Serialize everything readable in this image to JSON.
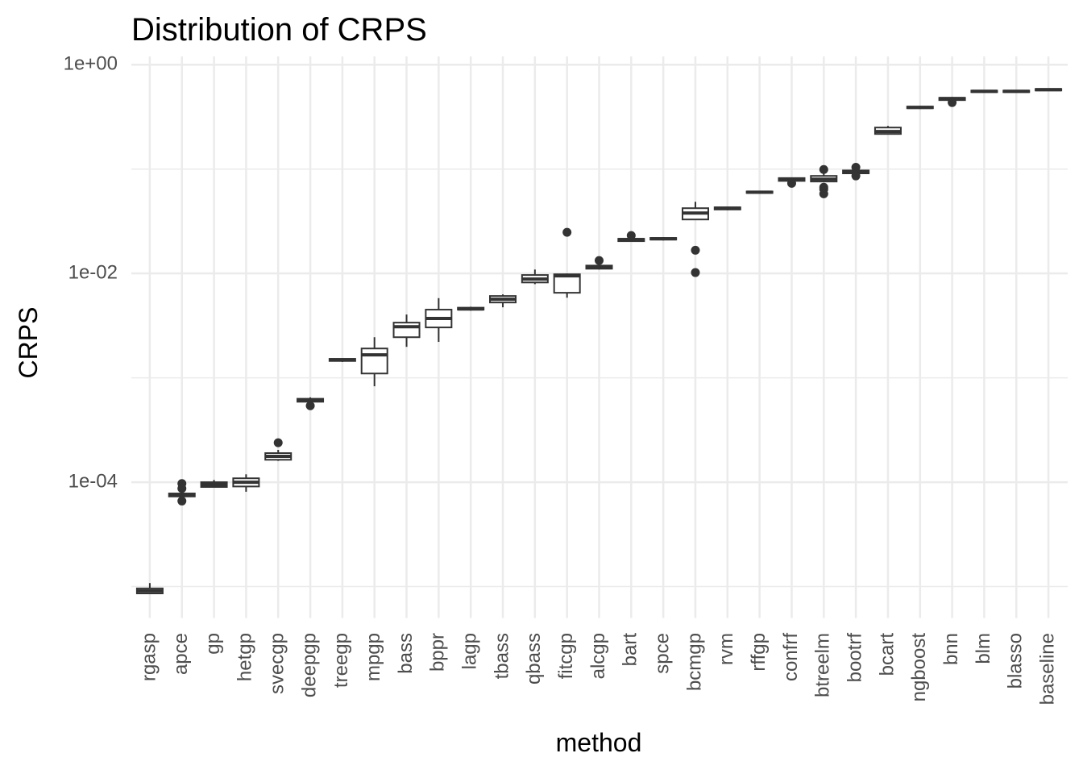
{
  "chart_data": {
    "type": "boxplot",
    "title": "Distribution of CRPS",
    "x_label": "method",
    "y_label": "CRPS",
    "log_scale": true,
    "grid": true,
    "color": "#333333",
    "fill": "#ffffff",
    "ylim": [
      5e-06,
      1.2
    ],
    "yticks": [
      {
        "value": 1,
        "label": "1e+00"
      },
      {
        "value": 0.01,
        "label": "1e-02"
      },
      {
        "value": 0.0001,
        "label": "1e-04"
      }
    ],
    "minor_yticks": [
      0.1,
      0.001,
      1e-05
    ],
    "categories": [
      "rgasp",
      "apce",
      "gp",
      "hetgp",
      "svecgp",
      "deepgp",
      "treegp",
      "mpgp",
      "bass",
      "bppr",
      "lagp",
      "tbass",
      "qbass",
      "fitcgp",
      "alcgp",
      "bart",
      "spce",
      "bcmgp",
      "rvm",
      "rffgp",
      "confrf",
      "btreelm",
      "bootrf",
      "bcart",
      "ngboost",
      "bnn",
      "blm",
      "blasso",
      "baseline"
    ],
    "boxes": [
      {
        "whisker_low": 8.6e-06,
        "q1": 8.6e-06,
        "median": 9.1e-06,
        "q3": 9.6e-06,
        "whisker_high": 1.08e-05,
        "outliers": []
      },
      {
        "whisker_low": 7.2e-05,
        "q1": 7.3e-05,
        "median": 7.5e-05,
        "q3": 7.8e-05,
        "whisker_high": 7.9e-05,
        "outliers": [
          9.7e-05,
          8.7e-05,
          6.6e-05
        ]
      },
      {
        "whisker_low": 8.9e-05,
        "q1": 9e-05,
        "median": 9.5e-05,
        "q3": 0.0001,
        "whisker_high": 0.000105,
        "outliers": []
      },
      {
        "whisker_low": 8.1e-05,
        "q1": 9.1e-05,
        "median": 0.0001,
        "q3": 0.000109,
        "whisker_high": 0.000119,
        "outliers": []
      },
      {
        "whisker_low": 0.00016,
        "q1": 0.000164,
        "median": 0.000177,
        "q3": 0.00019,
        "whisker_high": 0.000204,
        "outliers": [
          0.000239
        ]
      },
      {
        "whisker_low": 0.00057,
        "q1": 0.00059,
        "median": 0.00061,
        "q3": 0.00063,
        "whisker_high": 0.00065,
        "outliers": [
          0.00054
        ]
      },
      {
        "whisker_low": 0.00142,
        "q1": 0.00145,
        "median": 0.00149,
        "q3": 0.00152,
        "whisker_high": 0.00154,
        "outliers": []
      },
      {
        "whisker_low": 0.00083,
        "q1": 0.0011,
        "median": 0.00166,
        "q3": 0.00191,
        "whisker_high": 0.00245,
        "outliers": []
      },
      {
        "whisker_low": 0.00198,
        "q1": 0.00245,
        "median": 0.00309,
        "q3": 0.00338,
        "whisker_high": 0.00404,
        "outliers": []
      },
      {
        "whisker_low": 0.00221,
        "q1": 0.00304,
        "median": 0.0037,
        "q3": 0.0045,
        "whisker_high": 0.0058,
        "outliers": []
      },
      {
        "whisker_low": 0.0044,
        "q1": 0.0045,
        "median": 0.00457,
        "q3": 0.0047,
        "whisker_high": 0.0048,
        "outliers": []
      },
      {
        "whisker_low": 0.00474,
        "q1": 0.00527,
        "median": 0.00566,
        "q3": 0.00608,
        "whisker_high": 0.0063,
        "outliers": []
      },
      {
        "whisker_low": 0.0079,
        "q1": 0.0082,
        "median": 0.00883,
        "q3": 0.00966,
        "whisker_high": 0.0109,
        "outliers": []
      },
      {
        "whisker_low": 0.00586,
        "q1": 0.00653,
        "median": 0.00948,
        "q3": 0.00982,
        "whisker_high": 0.01,
        "outliers": [
          0.0248
        ]
      },
      {
        "whisker_low": 0.0109,
        "q1": 0.0111,
        "median": 0.0115,
        "q3": 0.0119,
        "whisker_high": 0.0124,
        "outliers": [
          0.0133
        ]
      },
      {
        "whisker_low": 0.0201,
        "q1": 0.0204,
        "median": 0.0211,
        "q3": 0.0215,
        "whisker_high": 0.0219,
        "outliers": [
          0.0231
        ]
      },
      {
        "whisker_low": 0.0207,
        "q1": 0.0211,
        "median": 0.0215,
        "q3": 0.0219,
        "whisker_high": 0.0223,
        "outliers": []
      },
      {
        "whisker_low": 0.0325,
        "q1": 0.0329,
        "median": 0.0379,
        "q3": 0.0422,
        "whisker_high": 0.0486,
        "outliers": [
          0.0167,
          0.0102
        ]
      },
      {
        "whisker_low": 0.0403,
        "q1": 0.041,
        "median": 0.0422,
        "q3": 0.043,
        "whisker_high": 0.0437,
        "outliers": []
      },
      {
        "whisker_low": 0.058,
        "q1": 0.059,
        "median": 0.06,
        "q3": 0.061,
        "whisker_high": 0.062,
        "outliers": []
      },
      {
        "whisker_low": 0.076,
        "q1": 0.077,
        "median": 0.08,
        "q3": 0.082,
        "whisker_high": 0.083,
        "outliers": [
          0.073
        ]
      },
      {
        "whisker_low": 0.075,
        "q1": 0.076,
        "median": 0.08,
        "q3": 0.086,
        "whisker_high": 0.092,
        "outliers": [
          0.099,
          0.067,
          0.064,
          0.058
        ]
      },
      {
        "whisker_low": 0.089,
        "q1": 0.091,
        "median": 0.094,
        "q3": 0.097,
        "whisker_high": 0.099,
        "outliers": [
          0.104,
          0.086
        ]
      },
      {
        "whisker_low": 0.217,
        "q1": 0.217,
        "median": 0.229,
        "q3": 0.25,
        "whisker_high": 0.259,
        "outliers": []
      },
      {
        "whisker_low": 0.376,
        "q1": 0.383,
        "median": 0.39,
        "q3": 0.397,
        "whisker_high": 0.404,
        "outliers": []
      },
      {
        "whisker_low": 0.45,
        "q1": 0.458,
        "median": 0.474,
        "q3": 0.482,
        "whisker_high": 0.491,
        "outliers": [
          0.434
        ]
      },
      {
        "whisker_low": 0.54,
        "q1": 0.546,
        "median": 0.556,
        "q3": 0.565,
        "whisker_high": 0.57,
        "outliers": []
      },
      {
        "whisker_low": 0.54,
        "q1": 0.546,
        "median": 0.556,
        "q3": 0.565,
        "whisker_high": 0.57,
        "outliers": []
      },
      {
        "whisker_low": 0.56,
        "q1": 0.566,
        "median": 0.576,
        "q3": 0.586,
        "whisker_high": 0.59,
        "outliers": []
      }
    ]
  }
}
